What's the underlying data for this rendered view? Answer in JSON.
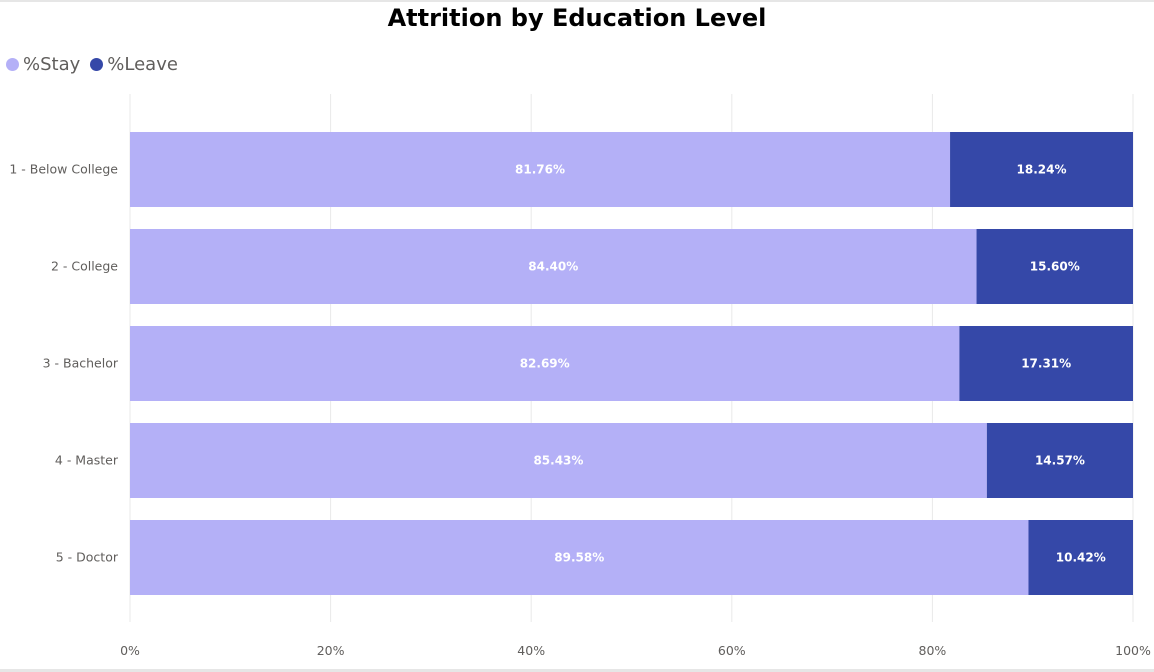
{
  "chart_data": {
    "type": "bar",
    "orientation": "horizontal",
    "stacked": true,
    "title": "Attrition by Education Level",
    "categories": [
      "1 - Below College",
      "2 - College",
      "3 - Bachelor",
      "4 - Master",
      "5 - Doctor"
    ],
    "series": [
      {
        "name": "%Stay",
        "color": "#b4b0f7",
        "values": [
          81.76,
          84.4,
          82.69,
          85.43,
          89.58
        ],
        "labels": [
          "81.76%",
          "84.40%",
          "82.69%",
          "85.43%",
          "89.58%"
        ]
      },
      {
        "name": "%Leave",
        "color": "#3548a8",
        "values": [
          18.24,
          15.6,
          17.31,
          14.57,
          10.42
        ],
        "labels": [
          "18.24%",
          "15.60%",
          "17.31%",
          "14.57%",
          "10.42%"
        ]
      }
    ],
    "xlim": [
      0,
      100
    ],
    "x_ticks": [
      0,
      20,
      40,
      60,
      80,
      100
    ],
    "x_tick_labels": [
      "0%",
      "20%",
      "40%",
      "60%",
      "80%",
      "100%"
    ],
    "grid": true,
    "legend_position": "top-left"
  }
}
